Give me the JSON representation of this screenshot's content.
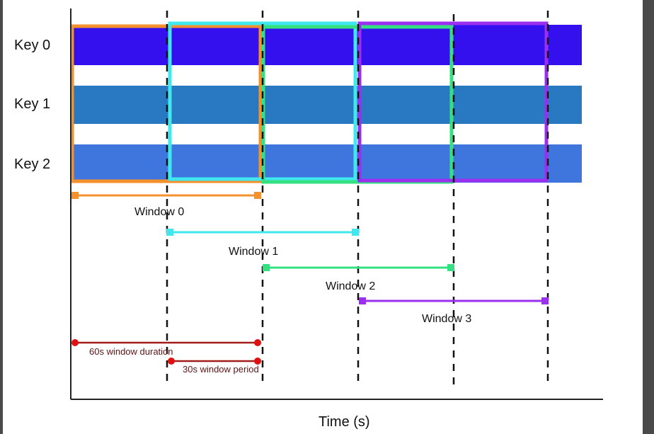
{
  "keys": [
    {
      "label": "Key 0",
      "color": "#3410ee"
    },
    {
      "label": "Key 1",
      "color": "#2979c2"
    },
    {
      "label": "Key 2",
      "color": "#3f76de"
    }
  ],
  "windows": [
    {
      "label": "Window 0",
      "color": "#f4912c"
    },
    {
      "label": "Window 1",
      "color": "#3fe8ee"
    },
    {
      "label": "Window 2",
      "color": "#34e07f"
    },
    {
      "label": "Window 3",
      "color": "#9a2ff0"
    }
  ],
  "legend": {
    "duration_label": "60s window duration",
    "period_label": "30s window period",
    "color": "#a31d1d",
    "dot_color": "#e01010"
  },
  "axis": {
    "xlabel": "Time (s)"
  }
}
